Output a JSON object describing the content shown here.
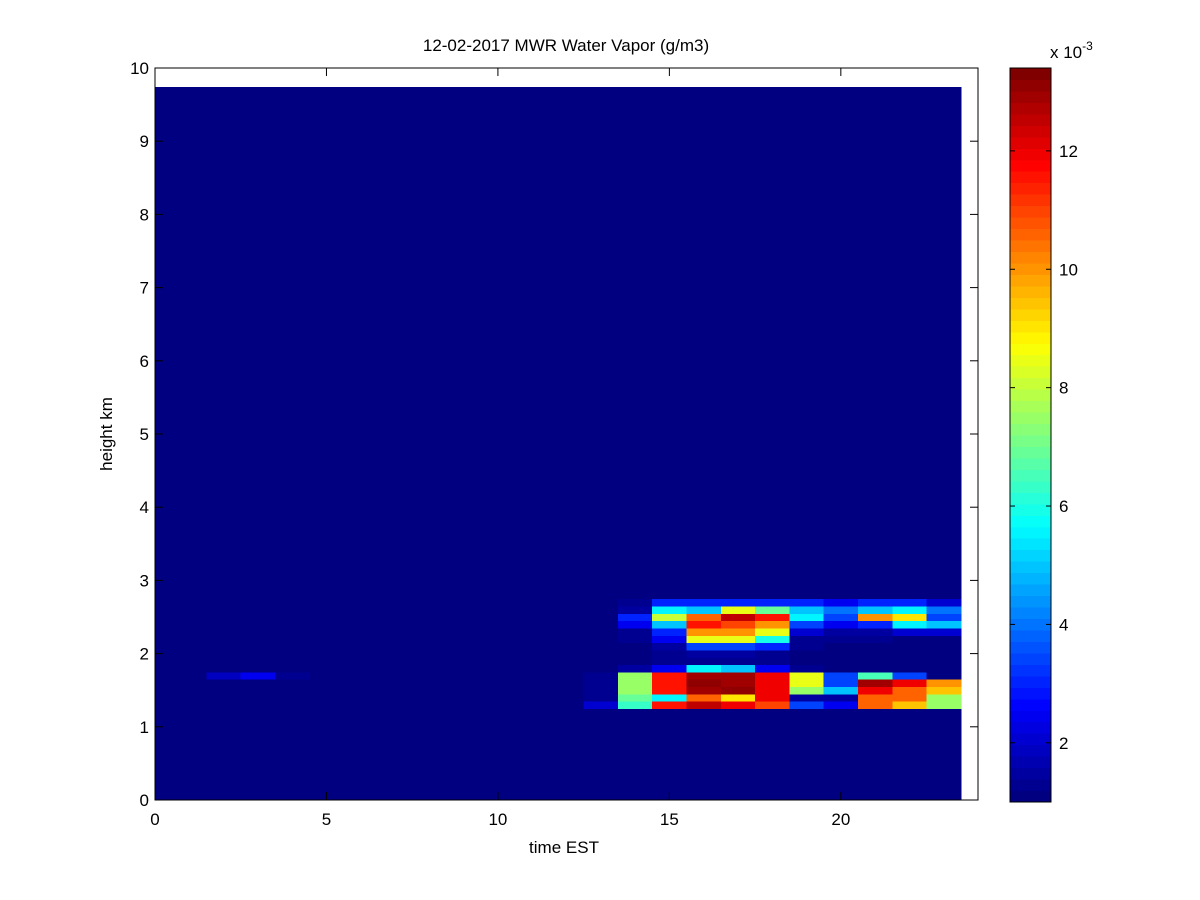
{
  "chart_data": {
    "type": "heatmap",
    "title": "12-02-2017 MWR Water Vapor (g/m3)",
    "x_label": "time EST",
    "y_label": "height km",
    "xlim": [
      0,
      24
    ],
    "ylim": [
      0,
      10
    ],
    "xticks": [
      0,
      5,
      10,
      15,
      20
    ],
    "yticks": [
      0,
      1,
      2,
      3,
      4,
      5,
      6,
      7,
      8,
      9,
      10
    ],
    "colormap": "jet",
    "clim": [
      1,
      13.4
    ],
    "colorbar_ticks": [
      2,
      4,
      6,
      8,
      10,
      12
    ],
    "colorbar_multiplier": {
      "base": "x 10",
      "exponent": "-3"
    },
    "x_edges": [
      0,
      0.5,
      1.5,
      2.5,
      3.5,
      4.5,
      5.5,
      6.5,
      7.5,
      8.5,
      9.5,
      10.5,
      11.5,
      12.5,
      13.5,
      14.5,
      15.5,
      16.5,
      17.5,
      18.5,
      19.5,
      20.5,
      21.5,
      22.5,
      23.5
    ],
    "y_edges": [
      0,
      1.25,
      1.35,
      1.45,
      1.55,
      1.65,
      1.75,
      1.85,
      1.95,
      2.05,
      2.15,
      2.25,
      2.35,
      2.45,
      2.55,
      2.65,
      2.75,
      9.74
    ],
    "values": [
      [
        1,
        1,
        1,
        1,
        1,
        1,
        1,
        1,
        1,
        1,
        1,
        1,
        1,
        1,
        1,
        1,
        1,
        1,
        1,
        1,
        1,
        1,
        1,
        1
      ],
      [
        1,
        1,
        1,
        1,
        1,
        1,
        1,
        1,
        1,
        1,
        1,
        1,
        1,
        2,
        6.3,
        11.5,
        12.5,
        12,
        11,
        3.5,
        2.5,
        10.5,
        9.5,
        7.5
      ],
      [
        1,
        1,
        1,
        1,
        1,
        1,
        1,
        1,
        1,
        1,
        1,
        1,
        1,
        1.2,
        7,
        5.5,
        10.5,
        9,
        12,
        1.5,
        1.5,
        10.5,
        10.5,
        7.5
      ],
      [
        1,
        1,
        1,
        1,
        1,
        1,
        1,
        1,
        1,
        1,
        1,
        1,
        1,
        1.2,
        7.5,
        11.5,
        13,
        13.2,
        12,
        7.5,
        5,
        12,
        10.5,
        9.5
      ],
      [
        1,
        1,
        1,
        1,
        1,
        1,
        1,
        1,
        1,
        1,
        1,
        1,
        1,
        1.2,
        7.5,
        11.5,
        13.2,
        13,
        12,
        8.5,
        3.5,
        13,
        12,
        10
      ],
      [
        1,
        1,
        1.8,
        2.5,
        1.3,
        1,
        1,
        1,
        1,
        1,
        1,
        1,
        1,
        1.2,
        7.5,
        11.5,
        13,
        13,
        12,
        8.5,
        3.5,
        6.5,
        3.5,
        1
      ],
      [
        1,
        1,
        1,
        1,
        1,
        1,
        1,
        1,
        1,
        1,
        1,
        1,
        1,
        1,
        1.5,
        2.5,
        5.5,
        5,
        2.5,
        1.2,
        1,
        1,
        1,
        1
      ],
      [
        1,
        1,
        1,
        1,
        1,
        1,
        1,
        1,
        1,
        1,
        1,
        1,
        1,
        1,
        1,
        1.3,
        1.3,
        1.3,
        1.2,
        1,
        1,
        1,
        1,
        1
      ],
      [
        1,
        1,
        1,
        1,
        1,
        1,
        1,
        1,
        1,
        1,
        1,
        1,
        1,
        1,
        1,
        1.3,
        1.5,
        1.5,
        1.3,
        1,
        1,
        1,
        1,
        1
      ],
      [
        1,
        1,
        1,
        1,
        1,
        1,
        1,
        1,
        1,
        1,
        1,
        1,
        1,
        1,
        1,
        1.5,
        3.5,
        3.5,
        3,
        1.2,
        1,
        1,
        1,
        1
      ],
      [
        1,
        1,
        1,
        1,
        1,
        1,
        1,
        1,
        1,
        1,
        1,
        1,
        1,
        1,
        1.2,
        2.5,
        8.5,
        8.5,
        6,
        1.2,
        1.2,
        1.2,
        1,
        1
      ],
      [
        1,
        1,
        1,
        1,
        1,
        1,
        1,
        1,
        1,
        1,
        1,
        1,
        1,
        1,
        1.3,
        3,
        10,
        10,
        8.5,
        2,
        1.5,
        1.5,
        2,
        2
      ],
      [
        1,
        1,
        1,
        1,
        1,
        1,
        1,
        1,
        1,
        1,
        1,
        1,
        1,
        1,
        2.5,
        5,
        11.5,
        11,
        10,
        3.5,
        2.5,
        3,
        5.5,
        5
      ],
      [
        1,
        1,
        1,
        1,
        1,
        1,
        1,
        1,
        1,
        1,
        1,
        1,
        1,
        1,
        3,
        8,
        10.5,
        12.5,
        11.5,
        5.5,
        3.5,
        10,
        9,
        3.5
      ],
      [
        1,
        1,
        1,
        1,
        1,
        1,
        1,
        1,
        1,
        1,
        1,
        1,
        1,
        1,
        1.5,
        5.5,
        5,
        8.5,
        7,
        5,
        4,
        5,
        5.5,
        4
      ],
      [
        1,
        1,
        1,
        1,
        1,
        1,
        1,
        1,
        1,
        1,
        1,
        1,
        1,
        1,
        1.2,
        3,
        3,
        3,
        3,
        3,
        2.5,
        3,
        3,
        2
      ],
      [
        1,
        1,
        1,
        1,
        1,
        1,
        1,
        1,
        1,
        1,
        1,
        1,
        1,
        1,
        1,
        1,
        1,
        1,
        1,
        1,
        1,
        1,
        1,
        1
      ]
    ]
  }
}
